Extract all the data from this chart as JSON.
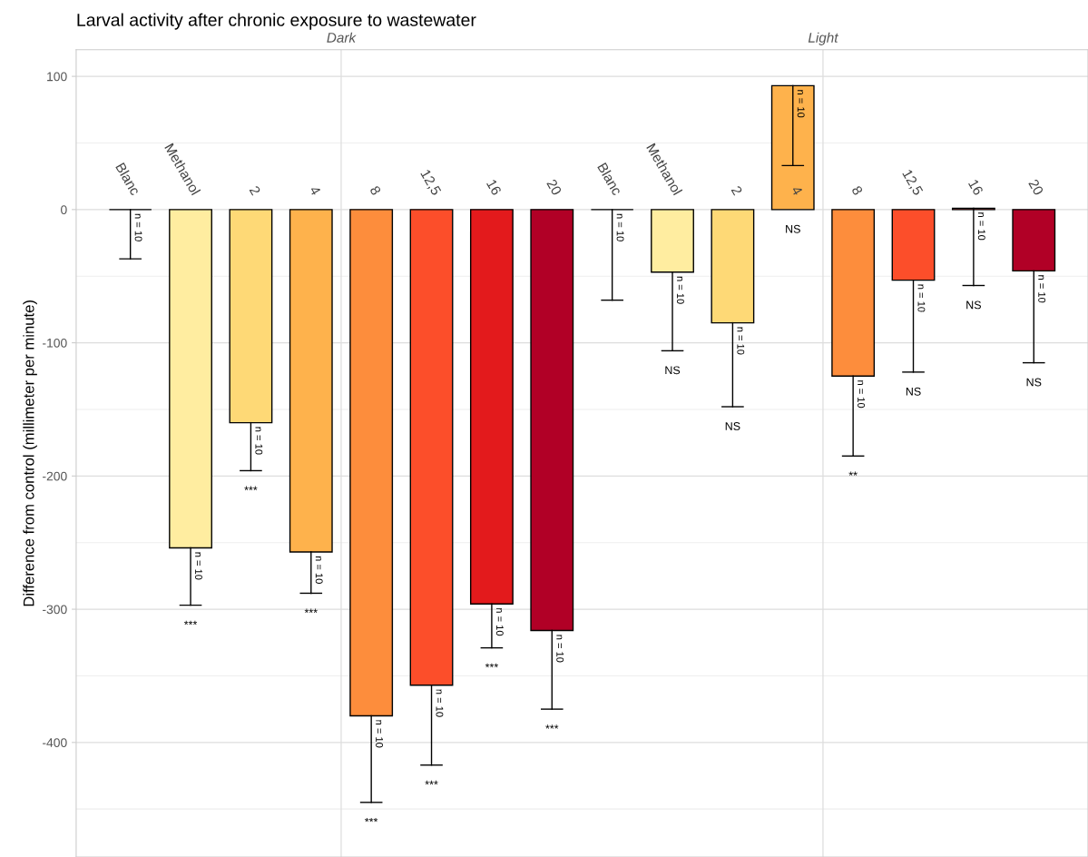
{
  "chart_data": {
    "type": "bar",
    "title": "Larval activity after chronic exposure to wastewater",
    "ylabel": "Difference from control (millimeter per minute)",
    "categories": [
      "Dark",
      "Light"
    ],
    "series": [
      {
        "name": "Blanc",
        "color": "#000000",
        "values": [
          0,
          0
        ],
        "errors": [
          [
            -37,
            0
          ],
          [
            -68,
            0
          ]
        ]
      },
      {
        "name": "Methanol",
        "color": "#ffeda0",
        "values": [
          -254,
          -47
        ],
        "errors": [
          [
            -297,
            -254
          ],
          [
            -106,
            -47
          ]
        ]
      },
      {
        "name": "2",
        "color": "#fed976",
        "values": [
          -160,
          -85
        ],
        "errors": [
          [
            -196,
            -160
          ],
          [
            -148,
            -85
          ]
        ]
      },
      {
        "name": "4",
        "color": "#feb24c",
        "values": [
          -257,
          93
        ],
        "errors": [
          [
            -288,
            -257
          ],
          [
            33,
            93
          ]
        ]
      },
      {
        "name": "8",
        "color": "#fd8d3c",
        "values": [
          -380,
          -125
        ],
        "errors": [
          [
            -445,
            -380
          ],
          [
            -185,
            -125
          ]
        ]
      },
      {
        "name": "12,5",
        "color": "#fc4e2a",
        "values": [
          -357,
          -53
        ],
        "errors": [
          [
            -417,
            -357
          ],
          [
            -122,
            -53
          ]
        ]
      },
      {
        "name": "16",
        "color": "#e31a1c",
        "values": [
          -296,
          1
        ],
        "errors": [
          [
            -329,
            -296
          ],
          [
            -57,
            1
          ]
        ]
      },
      {
        "name": "20",
        "color": "#b10026",
        "values": [
          -316,
          -46
        ],
        "errors": [
          [
            -375,
            -316
          ],
          [
            -115,
            -46
          ]
        ]
      }
    ],
    "annotations": [
      "n = 10",
      "n = 10",
      "n = 10",
      "n = 10",
      "n = 10",
      "n = 10",
      "n = 10",
      "n = 10",
      "n = 10",
      "n = 10",
      "n = 10",
      "n = 10",
      "n = 10",
      "n = 10",
      "n = 10",
      "n = 10",
      "***",
      "NS",
      "***",
      "NS",
      "***",
      "NS",
      "***",
      "**",
      "***",
      "NS",
      "***",
      "NS",
      "***",
      "NS"
    ],
    "ylim": [
      -486,
      120
    ],
    "yticks": [
      -400,
      -300,
      -200,
      -100,
      0,
      100
    ],
    "grid": true,
    "legend": false
  }
}
